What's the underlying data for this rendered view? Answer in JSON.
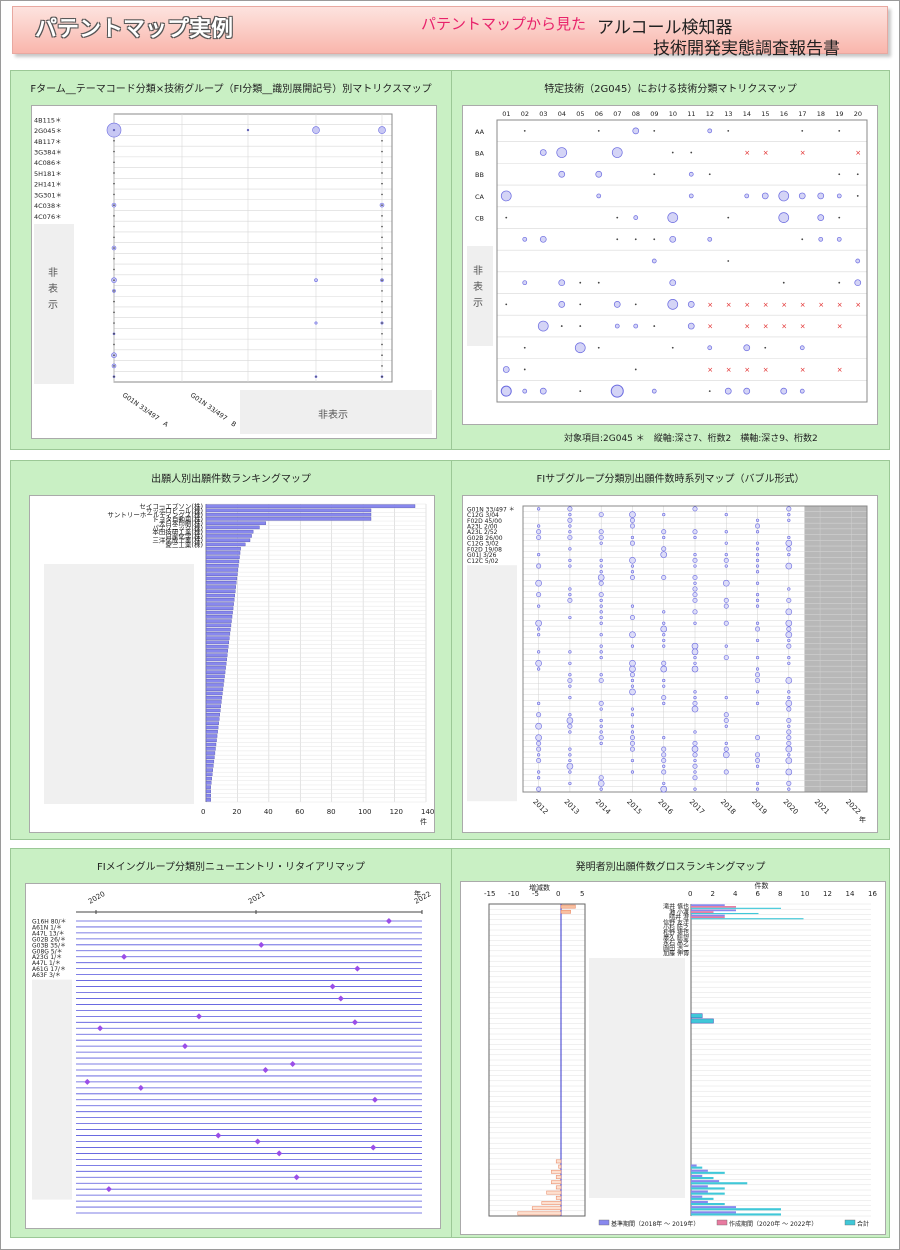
{
  "header": {
    "title": "パテントマップ実例",
    "subtitle": "パテントマップから見た",
    "right1": "アルコール検知器",
    "right2": "技術開発実態調査報告書"
  },
  "panels": [
    {
      "title": "Fターム__テーマコード分類×技術グループ（FI分類__識別展開記号）別マトリクスマップ"
    },
    {
      "title": "特定技術（2G045）における技術分類マトリクスマップ",
      "note": "対象項目:2G045 ＊　縦軸:深さ7、桁数2　横軸:深さ9、桁数2"
    },
    {
      "title": "出願人別出願件数ランキングマップ"
    },
    {
      "title": "FIサブグループ分類別出願件数時系列マップ（バブル形式）"
    },
    {
      "title": "FIメイングループ分類別ニューエントリ・リタイアリマップ"
    },
    {
      "title": "発明者別出願件数グロスランキングマップ"
    }
  ],
  "colors": {
    "bubble": "#6a6ae0",
    "bar": "#8888ee",
    "cross": "#e02020",
    "diamond": "#9a4ee8",
    "orange": "#e8805a",
    "cyan": "#40c8d8",
    "header": "#f9b6ac"
  },
  "hidden_label": "非表示",
  "chart_data": [
    {
      "type": "scatter",
      "title": "Fターム__テーマコード分類×技術グループ（FI分類__識別展開記号）別マトリクスマップ",
      "rows": [
        "4B115＊",
        "2G045＊",
        "4B117＊",
        "3G384＊",
        "4C086＊",
        "5H181＊",
        "2H141＊",
        "3G301＊",
        "4C038＊",
        "4C076＊"
      ],
      "cols": [
        "G01N 33/497　A",
        "G01N 33/497　B"
      ],
      "hidden_rows_label": "非表示",
      "points": [
        [
          0,
          1,
          4
        ],
        [
          1,
          1,
          1
        ],
        [
          2,
          1,
          0.5
        ],
        [
          3,
          1,
          2
        ],
        [
          4,
          1,
          2.2
        ],
        [
          0,
          8,
          1
        ],
        [
          3,
          8,
          0.5
        ],
        [
          4,
          8,
          1
        ]
      ]
    },
    {
      "type": "scatter",
      "title": "特定技術（2G045）における技術分類マトリクスマップ",
      "x": [
        "01",
        "02",
        "03",
        "04",
        "05",
        "06",
        "07",
        "08",
        "09",
        "10",
        "11",
        "12",
        "13",
        "14",
        "15",
        "16",
        "17",
        "18",
        "19",
        "20"
      ],
      "rows": [
        "AA",
        "BA",
        "BB",
        "CA",
        "CB"
      ],
      "marks": "bubble / ×",
      "footnote": "対象項目:2G045 ＊　縦軸:深さ7、桁数2　横軸:深さ9、桁数2"
    },
    {
      "type": "bar",
      "title": "出願人別出願件数ランキングマップ",
      "categories": [
        "セイコーエプソン(株)",
        "サッポロビール(株)",
        "サントリーホールディングス(株)",
        "トヨタ自動車(株)",
        "大日本印刷(株)",
        "パナソニック(株)",
        "本田技研工業(株)",
        "日産化学(株)",
        "三洋化成工業(株)",
        "愛三工業(株)"
      ],
      "values": [
        133,
        105,
        105,
        105,
        38,
        34,
        30,
        29,
        28,
        25
      ],
      "hidden_count": 60,
      "xlim": [
        0,
        140
      ],
      "xticks": [
        0,
        20,
        40,
        60,
        80,
        100,
        120,
        140
      ],
      "xunit": "件"
    },
    {
      "type": "scatter",
      "title": "FIサブグループ分類別出願件数時系列マップ（バブル形式）",
      "rows": [
        "G01N 33/497 ＊",
        "C12G 3/04",
        "F02D 45/00",
        "A23L 2/00",
        "A23L 2/52",
        "G02B 26/00",
        "C12G 3/02",
        "F02D 19/08",
        "G01J 3/26",
        "C12C 5/02"
      ],
      "x": [
        "2012",
        "2013",
        "2014",
        "2015",
        "2016",
        "2017",
        "2018",
        "2019",
        "2020",
        "2021",
        "2022"
      ],
      "xunit": "年"
    },
    {
      "type": "scatter",
      "title": "FIメイングループ分類別ニューエントリ・リタイアリマップ",
      "rows": [
        "G16H 80/＊",
        "A61N 1/＊",
        "A47L 13/＊",
        "G02B 26/＊",
        "G03B 35/＊",
        "G08G 5/＊",
        "A23G 1/＊",
        "A47L 1/＊",
        "A61G 17/＊",
        "A63F 3/＊"
      ],
      "x": [
        "2020",
        "2021",
        "2022"
      ],
      "xunit": "年"
    },
    {
      "type": "bar",
      "title": "発明者別出願件数グロスランキングマップ",
      "left_axis": {
        "label": "増減数",
        "ticks": [
          -15,
          -10,
          -5,
          0,
          5
        ]
      },
      "right_axis": {
        "label": "件数",
        "ticks": [
          0,
          2,
          4,
          6,
          8,
          10,
          12,
          14,
          16
        ]
      },
      "categories": [
        "滝井 慎也",
        "瀬 小渡",
        "晴井 澄",
        "信野 友洋",
        "小杉 陸之",
        "松野 捷也",
        "廣久 聡望",
        "永石 高之",
        "園田 浩二",
        "加藤 伸博"
      ],
      "base": [
        3,
        4,
        3,
        0,
        0,
        0,
        0,
        0,
        0,
        0
      ],
      "created": [
        4,
        2,
        3,
        0,
        0,
        0,
        0,
        0,
        0,
        0
      ],
      "total": [
        8,
        6,
        10,
        0,
        0,
        0,
        0,
        0,
        0,
        0
      ],
      "diff": [
        3,
        2,
        0,
        0,
        0,
        0,
        0,
        0,
        0,
        0
      ],
      "legend": [
        "基準期間（2018年 ～ 2019年）",
        "作成期間（2020年 ～ 2022年）",
        "合計"
      ]
    }
  ]
}
